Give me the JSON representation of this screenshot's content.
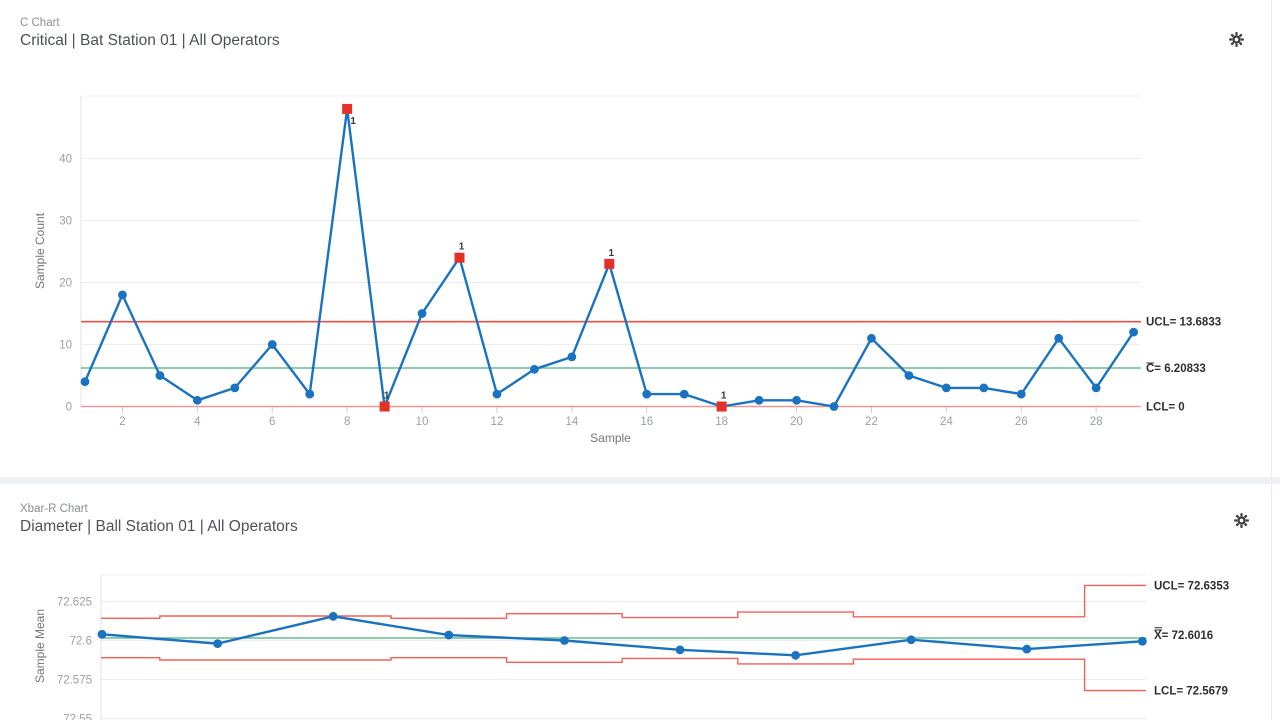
{
  "palette": {
    "series_blue": "#1a73c1",
    "control_red": "#f44336",
    "center_green": "#54b886",
    "ooc_red": "#e53028",
    "label_dark": "#2f2f2f"
  },
  "panels": [
    {
      "subtitle": "C Chart",
      "title": "Critical | Bat Station 01 | All Operators",
      "icon": "settings-icon"
    },
    {
      "subtitle": "Xbar-R Chart",
      "title": "Diameter | Ball Station 01 | All Operators",
      "icon": "settings-icon"
    }
  ],
  "chart_data": [
    {
      "type": "line",
      "subtype": "c-chart",
      "title": "C Chart",
      "xlabel": "Sample",
      "ylabel": "Sample Count",
      "x": [
        1,
        2,
        3,
        4,
        5,
        6,
        7,
        8,
        9,
        10,
        11,
        12,
        13,
        14,
        15,
        16,
        17,
        18,
        19,
        20,
        21,
        22,
        23,
        24,
        25,
        26,
        27,
        28,
        29
      ],
      "values": [
        4,
        18,
        5,
        1,
        3,
        10,
        2,
        48,
        0,
        15,
        24,
        2,
        6,
        8,
        23,
        2,
        2,
        0,
        1,
        1,
        0,
        11,
        5,
        3,
        3,
        2,
        11,
        3,
        12
      ],
      "yticks": [
        0,
        10,
        20,
        30,
        40
      ],
      "xticks": [
        2,
        4,
        6,
        8,
        10,
        12,
        14,
        16,
        18,
        20,
        22,
        24,
        26,
        28
      ],
      "ylim": [
        0,
        50.3
      ],
      "ucl": 13.6833,
      "center": 6.20833,
      "lcl": 0,
      "labels": {
        "ucl": "UCL= 13.6833",
        "center": "C= 6.20833",
        "lcl": "LCL= 0",
        "center_overline": "single"
      },
      "out_of_control": [
        {
          "sample": 8,
          "label": "1",
          "label_pos": "below"
        },
        {
          "sample": 9,
          "label": "1",
          "label_pos": "above"
        },
        {
          "sample": 11,
          "label": "1",
          "label_pos": "above"
        },
        {
          "sample": 15,
          "label": "1",
          "label_pos": "above"
        },
        {
          "sample": 18,
          "label": "1",
          "label_pos": "above"
        }
      ],
      "legend": "none",
      "grid": "horizontal"
    },
    {
      "type": "line",
      "subtype": "xbar-chart",
      "title": "Xbar-R Chart",
      "ylabel": "Sample Mean",
      "x": [
        1,
        2,
        3,
        4,
        5,
        6,
        7,
        8,
        9,
        10
      ],
      "values": [
        72.604,
        72.598,
        72.6155,
        72.6035,
        72.6,
        72.594,
        72.5905,
        72.6005,
        72.5945,
        72.5995
      ],
      "yticks": [
        72.625,
        72.6,
        72.575,
        72.55
      ],
      "ylim": [
        72.549,
        72.645
      ],
      "center": 72.6016,
      "ucl_steps": [
        72.6142,
        72.6157,
        72.6157,
        72.6142,
        72.6172,
        72.6147,
        72.6182,
        72.6152,
        72.6152,
        72.6353
      ],
      "lcl_steps": [
        72.589,
        72.5875,
        72.5875,
        72.589,
        72.586,
        72.5885,
        72.585,
        72.588,
        72.588,
        72.5679
      ],
      "labels": {
        "ucl": "UCL= 72.6353",
        "center": "X= 72.6016",
        "lcl": "LCL= 72.5679",
        "center_overline": "double",
        "ucl_value": 72.6353,
        "lcl_value": 72.5679
      },
      "out_of_control": [],
      "legend": "none",
      "grid": "horizontal"
    }
  ]
}
